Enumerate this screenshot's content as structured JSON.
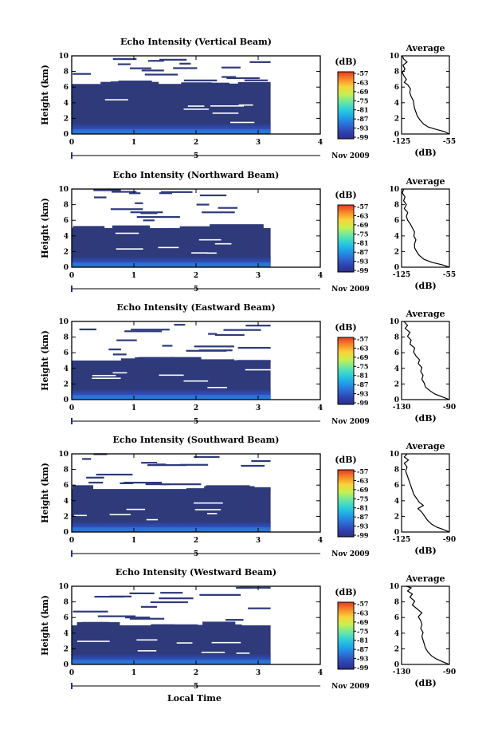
{
  "figure": {
    "bottom_xlabel": "Local Time",
    "date_label": "Nov 2009",
    "day_label": "5"
  },
  "chart_data": [
    {
      "type": "heatmap",
      "title": "Echo Intensity (Vertical Beam)",
      "ylabel": "Height (km)",
      "xlim": [
        0,
        4
      ],
      "ylim": [
        0,
        10
      ],
      "xticks": [
        "0",
        "1",
        "2",
        "3",
        "4"
      ],
      "yticks": [
        "0",
        "2",
        "4",
        "6",
        "8",
        "10"
      ],
      "data_end_time": 3.2,
      "dense_top_km": 6.4,
      "colorbar": {
        "label": "(dB)",
        "ticks": [
          "-57",
          "-63",
          "-69",
          "-75",
          "-81",
          "-87",
          "-93",
          "-99"
        ]
      },
      "average": {
        "title": "Average",
        "xlabel": "(dB)",
        "xlim": [
          -125,
          -55
        ],
        "xticks": [
          "-125",
          "-55"
        ],
        "profile": [
          [
            -55,
            0
          ],
          [
            -62,
            0.3
          ],
          [
            -75,
            0.6
          ],
          [
            -86,
            0.9
          ],
          [
            -93,
            1.3
          ],
          [
            -98,
            1.8
          ],
          [
            -102,
            2.3
          ],
          [
            -104,
            2.8
          ],
          [
            -106,
            3.3
          ],
          [
            -107,
            3.8
          ],
          [
            -108,
            4.3
          ],
          [
            -111,
            4.8
          ],
          [
            -113,
            5.3
          ],
          [
            -112,
            5.8
          ],
          [
            -116,
            6.3
          ],
          [
            -121,
            6.6
          ],
          [
            -118,
            7
          ],
          [
            -122,
            7.5
          ],
          [
            -124,
            7.9
          ],
          [
            -120,
            8.3
          ],
          [
            -123,
            8.8
          ],
          [
            -117,
            9.2
          ],
          [
            -122,
            9.6
          ],
          [
            -124,
            10
          ]
        ]
      }
    },
    {
      "type": "heatmap",
      "title": "Echo Intensity (Northward Beam)",
      "ylabel": "Height (km)",
      "xlim": [
        0,
        4
      ],
      "ylim": [
        0,
        10
      ],
      "xticks": [
        "0",
        "1",
        "2",
        "3",
        "4"
      ],
      "yticks": [
        "0",
        "2",
        "4",
        "6",
        "8",
        "10"
      ],
      "data_end_time": 3.2,
      "dense_top_km": 5.0,
      "colorbar": {
        "label": "(dB)",
        "ticks": [
          "-57",
          "-63",
          "-69",
          "-75",
          "-81",
          "-87",
          "-93",
          "-99"
        ]
      },
      "average": {
        "title": "Average",
        "xlabel": "(dB)",
        "xlim": [
          -125,
          -55
        ],
        "xticks": [
          "-125",
          "-55"
        ],
        "profile": [
          [
            -55,
            0
          ],
          [
            -65,
            0.3
          ],
          [
            -80,
            0.6
          ],
          [
            -92,
            1
          ],
          [
            -99,
            1.5
          ],
          [
            -103,
            2
          ],
          [
            -106,
            2.5
          ],
          [
            -106,
            3
          ],
          [
            -104,
            3.5
          ],
          [
            -107,
            4
          ],
          [
            -106,
            4.5
          ],
          [
            -109,
            5
          ],
          [
            -112,
            5.5
          ],
          [
            -116,
            6
          ],
          [
            -118,
            6.5
          ],
          [
            -116,
            7
          ],
          [
            -121,
            7.5
          ],
          [
            -118,
            8
          ],
          [
            -122,
            8.5
          ],
          [
            -120,
            9
          ],
          [
            -124,
            9.5
          ],
          [
            -122,
            10
          ]
        ]
      }
    },
    {
      "type": "heatmap",
      "title": "Echo Intensity (Eastward Beam)",
      "ylabel": "Height (km)",
      "xlim": [
        0,
        4
      ],
      "ylim": [
        0,
        10
      ],
      "xticks": [
        "0",
        "1",
        "2",
        "3",
        "4"
      ],
      "yticks": [
        "0",
        "2",
        "4",
        "6",
        "8",
        "10"
      ],
      "data_end_time": 3.2,
      "dense_top_km": 5.0,
      "colorbar": {
        "label": "(dB)",
        "ticks": [
          "-57",
          "-63",
          "-69",
          "-75",
          "-81",
          "-87",
          "-93",
          "-99"
        ]
      },
      "average": {
        "title": "Average",
        "xlabel": "(dB)",
        "xlim": [
          -130,
          -90
        ],
        "xticks": [
          "-130",
          "-90"
        ],
        "profile": [
          [
            -90,
            0
          ],
          [
            -95,
            0.3
          ],
          [
            -102,
            0.7
          ],
          [
            -106,
            1.1
          ],
          [
            -110,
            1.6
          ],
          [
            -111,
            2.1
          ],
          [
            -113,
            2.6
          ],
          [
            -112,
            3.1
          ],
          [
            -114,
            3.6
          ],
          [
            -113,
            4.1
          ],
          [
            -116,
            4.6
          ],
          [
            -115,
            5.1
          ],
          [
            -118,
            5.6
          ],
          [
            -120,
            6.1
          ],
          [
            -119,
            6.6
          ],
          [
            -123,
            7.1
          ],
          [
            -122,
            7.6
          ],
          [
            -125,
            8.1
          ],
          [
            -123,
            8.6
          ],
          [
            -127,
            9.1
          ],
          [
            -125,
            9.5
          ],
          [
            -128,
            10
          ]
        ]
      }
    },
    {
      "type": "heatmap",
      "title": "Echo Intensity (Southward Beam)",
      "ylabel": "Height (km)",
      "xlim": [
        0,
        4
      ],
      "ylim": [
        0,
        10
      ],
      "xticks": [
        "0",
        "1",
        "2",
        "3",
        "4"
      ],
      "yticks": [
        "0",
        "2",
        "4",
        "6",
        "8",
        "10"
      ],
      "data_end_time": 3.2,
      "dense_top_km": 5.5,
      "colorbar": {
        "label": "(dB)",
        "ticks": [
          "-57",
          "-63",
          "-69",
          "-75",
          "-81",
          "-87",
          "-93",
          "-99"
        ]
      },
      "average": {
        "title": "Average",
        "xlabel": "(dB)",
        "xlim": [
          -125,
          -90
        ],
        "xticks": [
          "-125",
          "-90"
        ],
        "profile": [
          [
            -90,
            0
          ],
          [
            -94,
            0.3
          ],
          [
            -99,
            0.6
          ],
          [
            -103,
            1
          ],
          [
            -106,
            1.5
          ],
          [
            -108,
            2
          ],
          [
            -110,
            2.5
          ],
          [
            -113,
            3
          ],
          [
            -109,
            3.4
          ],
          [
            -112,
            3.8
          ],
          [
            -114,
            4.3
          ],
          [
            -116,
            4.8
          ],
          [
            -117,
            5.3
          ],
          [
            -118,
            5.8
          ],
          [
            -119,
            6.3
          ],
          [
            -120,
            6.8
          ],
          [
            -121,
            7.3
          ],
          [
            -122,
            7.8
          ],
          [
            -121,
            8.3
          ],
          [
            -123,
            8.8
          ],
          [
            -120,
            9.2
          ],
          [
            -123,
            9.6
          ],
          [
            -121,
            10
          ]
        ]
      }
    },
    {
      "type": "heatmap",
      "title": "Echo Intensity (Westward Beam)",
      "ylabel": "Height (km)",
      "xlim": [
        0,
        4
      ],
      "ylim": [
        0,
        10
      ],
      "xticks": [
        "0",
        "1",
        "2",
        "3",
        "4"
      ],
      "yticks": [
        "0",
        "2",
        "4",
        "6",
        "8",
        "10"
      ],
      "data_end_time": 3.2,
      "dense_top_km": 5.0,
      "colorbar": {
        "label": "(dB)",
        "ticks": [
          "-57",
          "-63",
          "-69",
          "-75",
          "-81",
          "-87",
          "-93",
          "-99"
        ]
      },
      "average": {
        "title": "Average",
        "xlabel": "(dB)",
        "xlim": [
          -130,
          -90
        ],
        "xticks": [
          "-130",
          "-90"
        ],
        "profile": [
          [
            -90,
            0
          ],
          [
            -95,
            0.3
          ],
          [
            -101,
            0.7
          ],
          [
            -105,
            1.1
          ],
          [
            -108,
            1.6
          ],
          [
            -110,
            2.1
          ],
          [
            -111,
            2.6
          ],
          [
            -112,
            3.1
          ],
          [
            -113,
            3.6
          ],
          [
            -112,
            4.1
          ],
          [
            -114,
            4.6
          ],
          [
            -113,
            5.1
          ],
          [
            -114,
            5.6
          ],
          [
            -116,
            6.1
          ],
          [
            -113,
            6.6
          ],
          [
            -117,
            7.1
          ],
          [
            -121,
            7.6
          ],
          [
            -119,
            8.1
          ],
          [
            -123,
            8.6
          ],
          [
            -121,
            9
          ],
          [
            -125,
            9.4
          ],
          [
            -122,
            9.8
          ],
          [
            -126,
            10
          ]
        ]
      }
    }
  ],
  "colors": {
    "background_echo": "#2e3a7a",
    "colormap": [
      "#2b2d8a",
      "#2f46b3",
      "#2c72d9",
      "#1fa6e8",
      "#30d0d8",
      "#6ee8a0",
      "#c8f050",
      "#f8d43a",
      "#f78a2a",
      "#e23b20"
    ]
  }
}
